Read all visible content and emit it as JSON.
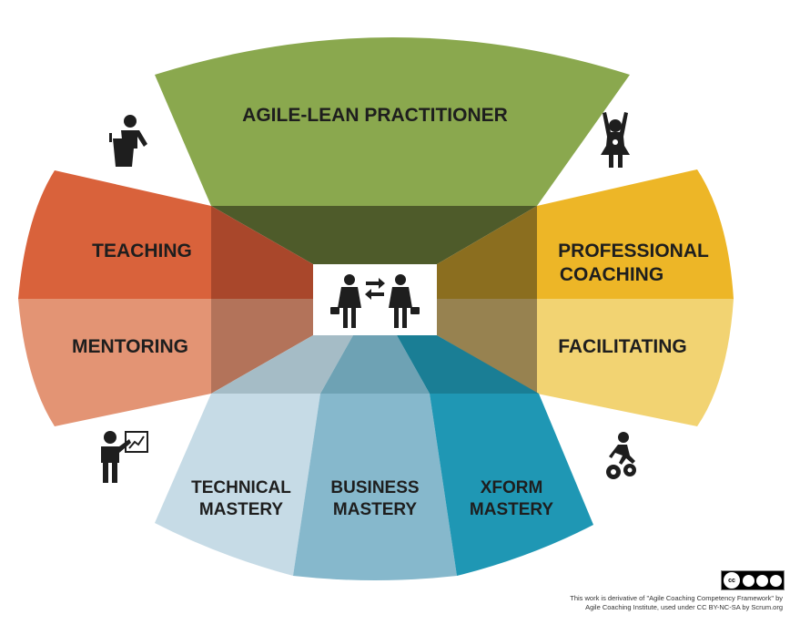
{
  "segments": {
    "agile_lean": "AGILE-LEAN PRACTITIONER",
    "teaching": "TEACHING",
    "mentoring": "MENTORING",
    "professional_coaching_1": "PROFESSIONAL",
    "professional_coaching_2": "COACHING",
    "facilitating": "FACILITATING",
    "technical_1": "TECHNICAL",
    "technical_2": "MASTERY",
    "business_1": "BUSINESS",
    "business_2": "MASTERY",
    "xform_1": "XFORM",
    "xform_2": "MASTERY"
  },
  "colors": {
    "agile_green": "#8aa84e",
    "green_dark": "#4e5b2a",
    "teaching_orange": "#d9623b",
    "mentoring_orange": "#e39474",
    "coaching_yellow": "#edb627",
    "facilitating_yellow": "#f2d372",
    "technical_blue": "#c6dbe6",
    "business_blue": "#86b8cc",
    "xform_teal": "#1f97b4"
  },
  "icons": [
    "teacher-podium-icon",
    "superhero-icon",
    "presenter-board-icon",
    "climber-gears-icon",
    "two-people-exchange-icon"
  ],
  "license": {
    "badge_text": "cc",
    "badge_sub": "BY NC SA",
    "credit_line_1": "This work is derivative of \"Agile Coaching Competency Framework\" by",
    "credit_line_2": "Agile Coaching Institute, used under CC BY-NC-SA by Scrum.org"
  }
}
